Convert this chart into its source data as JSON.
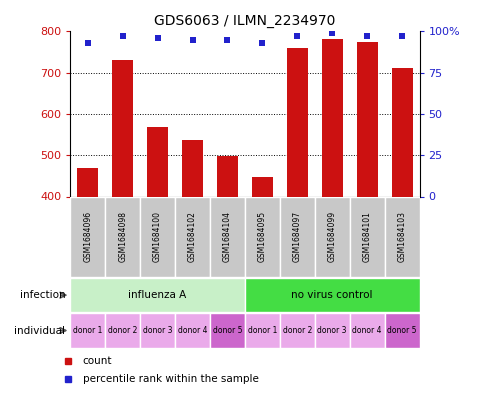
{
  "title": "GDS6063 / ILMN_2234970",
  "samples": [
    "GSM1684096",
    "GSM1684098",
    "GSM1684100",
    "GSM1684102",
    "GSM1684104",
    "GSM1684095",
    "GSM1684097",
    "GSM1684099",
    "GSM1684101",
    "GSM1684103"
  ],
  "counts": [
    468,
    730,
    568,
    538,
    498,
    448,
    760,
    782,
    774,
    712
  ],
  "percentiles": [
    93,
    97,
    96,
    95,
    95,
    93,
    97,
    99,
    97,
    97
  ],
  "ylim_left": [
    400,
    800
  ],
  "ylim_right": [
    0,
    100
  ],
  "yticks_left": [
    400,
    500,
    600,
    700,
    800
  ],
  "yticks_right": [
    0,
    25,
    50,
    75,
    100
  ],
  "ytick_right_labels": [
    "0",
    "25",
    "50",
    "75",
    "100%"
  ],
  "bar_color": "#cc1111",
  "dot_color": "#2222cc",
  "infection_labels": [
    "influenza A",
    "no virus control"
  ],
  "infection_colors": [
    "#c8f0c8",
    "#44dd44"
  ],
  "individual_labels": [
    "donor 1",
    "donor 2",
    "donor 3",
    "donor 4",
    "donor 5",
    "donor 1",
    "donor 2",
    "donor 3",
    "donor 4",
    "donor 5"
  ],
  "ind_colors": [
    "#eaaaea",
    "#eaaaea",
    "#eaaaea",
    "#eaaaea",
    "#cc66cc",
    "#eaaaea",
    "#eaaaea",
    "#eaaaea",
    "#eaaaea",
    "#cc66cc"
  ],
  "sample_bg_color": "#c8c8c8",
  "grid_color": "#000000",
  "legend_count": "count",
  "legend_pct": "percentile rank within the sample"
}
